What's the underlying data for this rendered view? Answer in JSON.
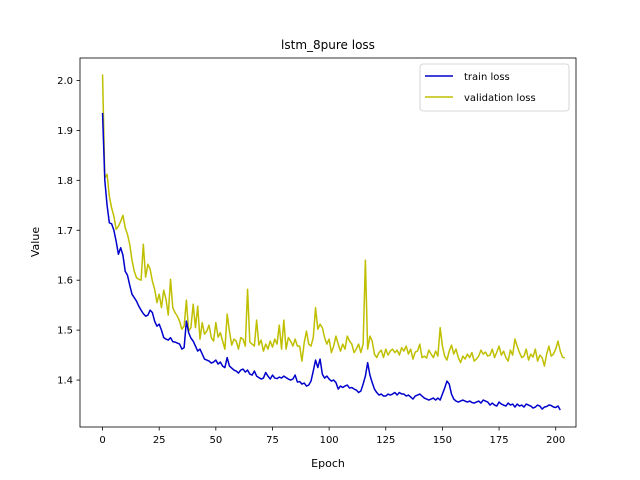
{
  "chart_data": {
    "type": "line",
    "title": "lstm_8pure loss",
    "xlabel": "Epoch",
    "ylabel": "Value",
    "xlim": [
      -9.95,
      208.95
    ],
    "ylim": [
      1.306,
      2.045
    ],
    "xticks": [
      0,
      25,
      50,
      75,
      100,
      125,
      150,
      175,
      200
    ],
    "yticks": [
      1.4,
      1.5,
      1.6,
      1.7,
      1.8,
      1.9,
      2.0
    ],
    "xtick_labels": [
      "0",
      "25",
      "50",
      "75",
      "100",
      "125",
      "150",
      "175",
      "200"
    ],
    "ytick_labels": [
      "1.4",
      "1.5",
      "1.6",
      "1.7",
      "1.8",
      "1.9",
      "2.0"
    ],
    "grid": false,
    "legend_position": "top-right",
    "series": [
      {
        "name": "train loss",
        "color": "#0000cc",
        "values": [
          1.935,
          1.8,
          1.75,
          1.715,
          1.713,
          1.7,
          1.678,
          1.652,
          1.665,
          1.65,
          1.618,
          1.61,
          1.59,
          1.572,
          1.565,
          1.558,
          1.548,
          1.54,
          1.533,
          1.528,
          1.53,
          1.54,
          1.535,
          1.518,
          1.508,
          1.512,
          1.5,
          1.485,
          1.482,
          1.48,
          1.485,
          1.477,
          1.476,
          1.474,
          1.472,
          1.462,
          1.465,
          1.518,
          1.495,
          1.484,
          1.478,
          1.468,
          1.458,
          1.462,
          1.452,
          1.442,
          1.44,
          1.438,
          1.434,
          1.436,
          1.44,
          1.432,
          1.436,
          1.428,
          1.425,
          1.445,
          1.428,
          1.424,
          1.42,
          1.418,
          1.414,
          1.42,
          1.422,
          1.416,
          1.42,
          1.412,
          1.41,
          1.418,
          1.408,
          1.405,
          1.402,
          1.404,
          1.415,
          1.408,
          1.402,
          1.41,
          1.404,
          1.403,
          1.406,
          1.404,
          1.408,
          1.405,
          1.402,
          1.4,
          1.402,
          1.41,
          1.396,
          1.397,
          1.392,
          1.394,
          1.388,
          1.39,
          1.398,
          1.418,
          1.44,
          1.425,
          1.442,
          1.412,
          1.404,
          1.408,
          1.402,
          1.398,
          1.4,
          1.395,
          1.382,
          1.388,
          1.385,
          1.388,
          1.39,
          1.384,
          1.385,
          1.382,
          1.38,
          1.375,
          1.378,
          1.392,
          1.408,
          1.435,
          1.41,
          1.395,
          1.382,
          1.375,
          1.37,
          1.372,
          1.368,
          1.368,
          1.372,
          1.37,
          1.372,
          1.375,
          1.37,
          1.375,
          1.372,
          1.372,
          1.368,
          1.37,
          1.366,
          1.362,
          1.368,
          1.37,
          1.372,
          1.368,
          1.364,
          1.362,
          1.36,
          1.362,
          1.364,
          1.36,
          1.364,
          1.36,
          1.372,
          1.384,
          1.398,
          1.392,
          1.372,
          1.362,
          1.358,
          1.356,
          1.358,
          1.36,
          1.358,
          1.356,
          1.358,
          1.355,
          1.354,
          1.356,
          1.358,
          1.354,
          1.36,
          1.358,
          1.356,
          1.35,
          1.354,
          1.35,
          1.348,
          1.356,
          1.352,
          1.35,
          1.348,
          1.354,
          1.35,
          1.352,
          1.346,
          1.352,
          1.348,
          1.35,
          1.346,
          1.352,
          1.35,
          1.348,
          1.344,
          1.346,
          1.35,
          1.348,
          1.342,
          1.346,
          1.347,
          1.35,
          1.349,
          1.346,
          1.345,
          1.348,
          1.34
        ]
      },
      {
        "name": "validation loss",
        "color": "#bfbf00",
        "values": [
          2.012,
          1.805,
          1.812,
          1.768,
          1.745,
          1.728,
          1.702,
          1.708,
          1.718,
          1.73,
          1.705,
          1.692,
          1.672,
          1.64,
          1.618,
          1.605,
          1.602,
          1.6,
          1.672,
          1.606,
          1.632,
          1.622,
          1.598,
          1.582,
          1.555,
          1.572,
          1.545,
          1.58,
          1.562,
          1.53,
          1.602,
          1.545,
          1.535,
          1.528,
          1.518,
          1.502,
          1.508,
          1.56,
          1.498,
          1.505,
          1.552,
          1.505,
          1.548,
          1.482,
          1.515,
          1.492,
          1.498,
          1.51,
          1.485,
          1.478,
          1.515,
          1.486,
          1.495,
          1.478,
          1.462,
          1.532,
          1.498,
          1.47,
          1.482,
          1.478,
          1.462,
          1.485,
          1.482,
          1.468,
          1.582,
          1.476,
          1.472,
          1.468,
          1.52,
          1.47,
          1.48,
          1.458,
          1.472,
          1.462,
          1.478,
          1.466,
          1.482,
          1.472,
          1.51,
          1.462,
          1.52,
          1.462,
          1.485,
          1.478,
          1.468,
          1.482,
          1.468,
          1.468,
          1.438,
          1.475,
          1.498,
          1.472,
          1.468,
          1.485,
          1.545,
          1.502,
          1.512,
          1.505,
          1.485,
          1.472,
          1.482,
          1.455,
          1.468,
          1.488,
          1.472,
          1.458,
          1.472,
          1.462,
          1.488,
          1.478,
          1.472,
          1.455,
          1.462,
          1.472,
          1.455,
          1.472,
          1.64,
          1.462,
          1.488,
          1.478,
          1.452,
          1.445,
          1.455,
          1.46,
          1.445,
          1.462,
          1.45,
          1.458,
          1.462,
          1.455,
          1.46,
          1.45,
          1.465,
          1.458,
          1.468,
          1.452,
          1.462,
          1.442,
          1.456,
          1.458,
          1.472,
          1.445,
          1.448,
          1.444,
          1.46,
          1.452,
          1.445,
          1.458,
          1.448,
          1.505,
          1.468,
          1.448,
          1.44,
          1.458,
          1.47,
          1.452,
          1.462,
          1.445,
          1.435,
          1.448,
          1.442,
          1.452,
          1.445,
          1.455,
          1.438,
          1.442,
          1.448,
          1.46,
          1.452,
          1.456,
          1.448,
          1.45,
          1.462,
          1.445,
          1.456,
          1.468,
          1.45,
          1.458,
          1.445,
          1.438,
          1.46,
          1.45,
          1.482,
          1.468,
          1.455,
          1.445,
          1.448,
          1.462,
          1.44,
          1.452,
          1.446,
          1.462,
          1.438,
          1.45,
          1.445,
          1.428,
          1.452,
          1.468,
          1.448,
          1.452,
          1.462,
          1.478,
          1.458,
          1.446,
          1.444
        ]
      }
    ]
  }
}
